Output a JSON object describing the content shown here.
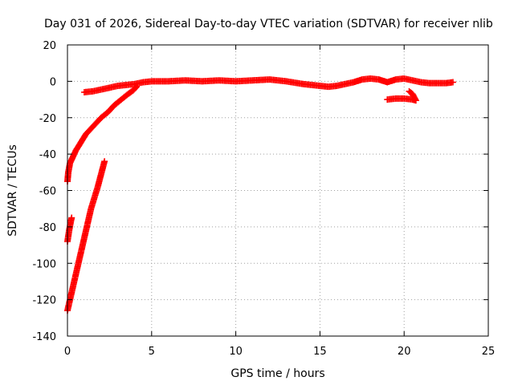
{
  "chart_data": {
    "type": "scatter",
    "title": "Day 031 of 2026, Sidereal Day-to-day VTEC variation (SDTVAR) for receiver nlib",
    "xlabel": "GPS time / hours",
    "ylabel": "SDTVAR / TECUs",
    "xlim": [
      0,
      25
    ],
    "ylim": [
      -140,
      20
    ],
    "xticks": [
      0,
      5,
      10,
      15,
      20,
      25
    ],
    "yticks": [
      -140,
      -120,
      -100,
      -80,
      -60,
      -40,
      -20,
      0,
      20
    ],
    "grid": true,
    "marker": "plus",
    "color": "#ff0000",
    "series": [
      {
        "points": [
          [
            0.0,
            -55
          ],
          [
            0.05,
            -50
          ],
          [
            0.15,
            -45
          ],
          [
            0.3,
            -42
          ],
          [
            0.5,
            -38
          ],
          [
            0.7,
            -35
          ],
          [
            0.9,
            -32
          ],
          [
            1.1,
            -29
          ],
          [
            1.4,
            -26
          ],
          [
            1.7,
            -23
          ],
          [
            2.0,
            -20
          ],
          [
            2.4,
            -17
          ],
          [
            2.8,
            -13
          ],
          [
            3.2,
            -10
          ],
          [
            3.6,
            -7
          ],
          [
            3.9,
            -5
          ],
          [
            4.1,
            -3
          ]
        ]
      },
      {
        "points": [
          [
            1.0,
            -6
          ],
          [
            1.5,
            -5.5
          ],
          [
            2.0,
            -4.5
          ],
          [
            2.5,
            -3.5
          ],
          [
            3.0,
            -2.5
          ],
          [
            3.5,
            -2
          ],
          [
            4.0,
            -1.5
          ],
          [
            4.5,
            -0.5
          ],
          [
            5.0,
            0
          ],
          [
            6.0,
            0
          ],
          [
            7.0,
            0.5
          ],
          [
            8.0,
            0
          ],
          [
            9.0,
            0.5
          ],
          [
            10.0,
            0
          ],
          [
            11.0,
            0.5
          ],
          [
            12.0,
            1
          ],
          [
            13.0,
            0
          ],
          [
            14.0,
            -1.5
          ],
          [
            15.0,
            -2.5
          ],
          [
            15.5,
            -3
          ],
          [
            16.0,
            -2.5
          ],
          [
            17.0,
            -0.5
          ],
          [
            17.5,
            1
          ],
          [
            18.0,
            1.5
          ],
          [
            18.5,
            1
          ],
          [
            19.0,
            -0.5
          ],
          [
            19.5,
            1
          ],
          [
            20.0,
            1.5
          ],
          [
            20.5,
            0.5
          ],
          [
            21.0,
            -0.5
          ],
          [
            21.5,
            -1
          ],
          [
            22.0,
            -1
          ],
          [
            22.5,
            -1
          ],
          [
            22.9,
            -0.5
          ]
        ]
      },
      {
        "points": [
          [
            19.0,
            -10
          ],
          [
            19.5,
            -9.5
          ],
          [
            20.0,
            -9.5
          ],
          [
            20.5,
            -10
          ],
          [
            20.7,
            -10.5
          ],
          [
            20.5,
            -7
          ],
          [
            20.3,
            -5.5
          ]
        ]
      },
      {
        "points": [
          [
            0.0,
            -88
          ],
          [
            0.1,
            -82
          ],
          [
            0.2,
            -77
          ],
          [
            0.25,
            -75
          ]
        ]
      },
      {
        "points": [
          [
            0.0,
            -126
          ],
          [
            0.2,
            -118
          ],
          [
            0.4,
            -110
          ],
          [
            0.6,
            -102
          ],
          [
            0.8,
            -94
          ],
          [
            1.0,
            -86
          ],
          [
            1.2,
            -78
          ],
          [
            1.4,
            -70
          ],
          [
            1.6,
            -64
          ],
          [
            1.8,
            -58
          ],
          [
            2.0,
            -51
          ],
          [
            2.2,
            -44
          ]
        ]
      }
    ]
  }
}
